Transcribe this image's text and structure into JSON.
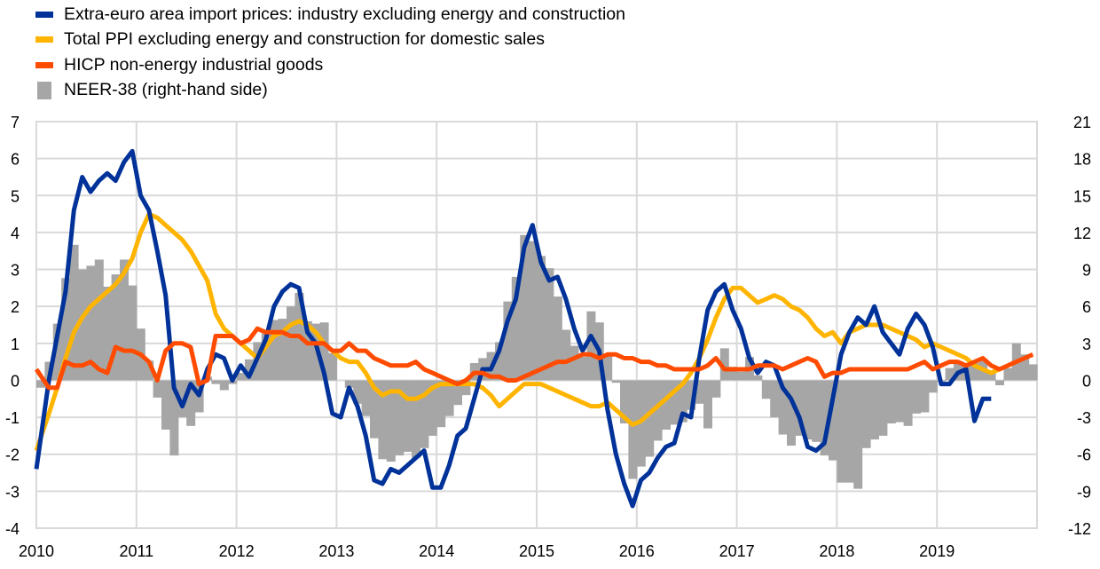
{
  "legend": [
    {
      "label": "Extra-euro area import prices: industry excluding energy and construction",
      "color": "#003299",
      "kind": "line"
    },
    {
      "label": "Total PPI excluding energy and construction for domestic sales",
      "color": "#FFB400",
      "kind": "line"
    },
    {
      "label": "HICP non-energy industrial goods",
      "color": "#FF4B00",
      "kind": "line"
    },
    {
      "label": "NEER-38 (right-hand side)",
      "color": "#A6A6A6",
      "kind": "bar"
    }
  ],
  "chart_data": {
    "type": "line",
    "title": "",
    "xlabel": "",
    "ylabel": "",
    "x_start": "2010-01",
    "frequency": "monthly",
    "x_ticks": [
      "2010",
      "2011",
      "2012",
      "2013",
      "2014",
      "2015",
      "2016",
      "2017",
      "2018",
      "2019"
    ],
    "y_left": {
      "min": -4,
      "max": 7,
      "step": 1,
      "ticks": [
        "-4",
        "-3",
        "-2",
        "-1",
        "0",
        "1",
        "2",
        "3",
        "4",
        "5",
        "6",
        "7"
      ]
    },
    "y_right": {
      "min": -12,
      "max": 21,
      "step": 3,
      "ticks": [
        "-12",
        "-9",
        "-6",
        "-3",
        "0",
        "3",
        "6",
        "9",
        "12",
        "15",
        "18",
        "21"
      ]
    },
    "grid": true,
    "legend_position": "top-left",
    "series": [
      {
        "name": "Extra-euro area import prices: industry excluding energy and construction",
        "axis": "left",
        "type": "line",
        "color": "#003299",
        "values": [
          -2.4,
          0.0,
          1.2,
          2.4,
          4.6,
          5.5,
          5.1,
          5.4,
          5.6,
          5.4,
          5.9,
          6.2,
          5.0,
          4.6,
          3.5,
          2.3,
          -0.2,
          -0.7,
          -0.1,
          -0.4,
          0.3,
          0.7,
          0.6,
          0.0,
          0.4,
          0.1,
          0.6,
          1.1,
          2.0,
          2.4,
          2.6,
          2.5,
          1.3,
          1.0,
          0.2,
          -0.9,
          -1.0,
          -0.2,
          -0.7,
          -1.5,
          -2.7,
          -2.8,
          -2.4,
          -2.5,
          -2.3,
          -2.1,
          -1.9,
          -2.9,
          -2.9,
          -2.3,
          -1.5,
          -1.3,
          -0.5,
          0.3,
          0.3,
          0.8,
          1.6,
          2.2,
          3.6,
          4.2,
          3.2,
          2.7,
          2.8,
          2.2,
          1.4,
          0.8,
          1.2,
          0.8,
          -0.8,
          -2.0,
          -2.8,
          -3.4,
          -2.7,
          -2.5,
          -2.1,
          -1.8,
          -1.7,
          -0.9,
          -1.0,
          0.6,
          1.9,
          2.4,
          2.6,
          1.9,
          1.4,
          0.6,
          0.2,
          0.5,
          0.4,
          -0.2,
          -0.5,
          -1.0,
          -1.8,
          -1.9,
          -1.7,
          -0.5,
          0.7,
          1.3,
          1.7,
          1.5,
          2.0,
          1.3,
          1.0,
          0.7,
          1.4,
          1.8,
          1.5,
          0.9,
          -0.1,
          -0.1,
          0.2,
          0.3,
          -1.1,
          -0.5,
          -0.5
        ]
      },
      {
        "name": "Total PPI excluding energy and construction for domestic sales",
        "axis": "left",
        "type": "line",
        "color": "#FFB400",
        "values": [
          -1.9,
          -0.9,
          -0.2,
          0.6,
          1.3,
          1.7,
          2.0,
          2.2,
          2.4,
          2.6,
          2.9,
          3.3,
          4.0,
          4.5,
          4.4,
          4.2,
          4.0,
          3.8,
          3.5,
          3.1,
          2.7,
          1.8,
          1.4,
          1.2,
          1.0,
          0.8,
          0.6,
          0.9,
          1.2,
          1.3,
          1.5,
          1.6,
          1.5,
          1.3,
          1.0,
          0.8,
          0.6,
          0.5,
          0.5,
          0.2,
          -0.2,
          -0.4,
          -0.3,
          -0.3,
          -0.5,
          -0.5,
          -0.4,
          -0.2,
          -0.1,
          -0.1,
          -0.1,
          -0.1,
          -0.1,
          -0.2,
          -0.4,
          -0.7,
          -0.5,
          -0.3,
          -0.1,
          -0.1,
          -0.1,
          -0.2,
          -0.3,
          -0.4,
          -0.5,
          -0.6,
          -0.7,
          -0.7,
          -0.6,
          -0.8,
          -1.0,
          -1.2,
          -1.1,
          -0.9,
          -0.7,
          -0.5,
          -0.3,
          -0.1,
          0.2,
          0.6,
          1.1,
          1.7,
          2.2,
          2.5,
          2.5,
          2.3,
          2.1,
          2.2,
          2.3,
          2.2,
          2.0,
          1.9,
          1.7,
          1.4,
          1.2,
          1.3,
          1.0,
          1.3,
          1.4,
          1.5,
          1.5,
          1.5,
          1.4,
          1.3,
          1.2,
          1.1,
          0.9,
          1.0,
          0.9,
          0.8,
          0.7,
          0.6,
          0.4,
          0.3,
          0.2,
          0.3
        ]
      },
      {
        "name": "HICP non-energy industrial goods",
        "axis": "left",
        "type": "line",
        "color": "#FF4B00",
        "values": [
          0.3,
          -0.2,
          -0.2,
          0.5,
          0.4,
          0.4,
          0.5,
          0.3,
          0.2,
          0.9,
          0.8,
          0.8,
          0.7,
          0.5,
          0.0,
          0.8,
          1.0,
          1.0,
          0.9,
          -0.1,
          0.0,
          1.2,
          1.2,
          1.2,
          1.0,
          1.1,
          1.4,
          1.3,
          1.3,
          1.3,
          1.2,
          1.2,
          1.0,
          1.0,
          1.0,
          0.8,
          0.8,
          1.0,
          0.8,
          0.8,
          0.6,
          0.5,
          0.4,
          0.4,
          0.4,
          0.5,
          0.3,
          0.2,
          0.1,
          0.0,
          -0.1,
          0.0,
          0.2,
          0.2,
          0.1,
          0.1,
          0.0,
          0.0,
          0.1,
          0.2,
          0.3,
          0.4,
          0.5,
          0.5,
          0.6,
          0.7,
          0.7,
          0.6,
          0.7,
          0.7,
          0.6,
          0.6,
          0.5,
          0.5,
          0.4,
          0.4,
          0.3,
          0.3,
          0.3,
          0.3,
          0.4,
          0.6,
          0.3,
          0.3,
          0.3,
          0.3,
          0.4,
          0.4,
          0.4,
          0.3,
          0.4,
          0.5,
          0.6,
          0.5,
          0.1,
          0.2,
          0.2,
          0.3,
          0.3,
          0.3,
          0.3,
          0.3,
          0.3,
          0.3,
          0.3,
          0.4,
          0.5,
          0.3,
          0.4,
          0.5,
          0.5,
          0.4,
          0.5,
          0.6,
          0.4,
          0.3,
          0.4,
          0.5,
          0.6,
          0.7
        ]
      },
      {
        "name": "NEER-38 (right-hand side)",
        "axis": "right",
        "type": "bar",
        "color": "#A6A6A6",
        "values": [
          -0.6,
          1.5,
          4.6,
          8.3,
          11.0,
          9.0,
          9.3,
          9.8,
          7.6,
          8.6,
          9.8,
          7.7,
          4.2,
          1.6,
          -1.4,
          -4.0,
          -6.1,
          -3.0,
          -3.7,
          -2.6,
          0.3,
          -0.3,
          -0.8,
          -0.3,
          0.6,
          1.7,
          3.1,
          3.8,
          4.9,
          5.0,
          6.0,
          7.1,
          4.8,
          4.6,
          4.7,
          2.2,
          0.0,
          -0.6,
          -1.9,
          -2.9,
          -4.7,
          -6.4,
          -6.6,
          -6.1,
          -5.8,
          -6.3,
          -5.5,
          -4.5,
          -3.8,
          -2.9,
          -2.0,
          -1.2,
          1.4,
          1.8,
          2.3,
          3.1,
          6.4,
          8.4,
          11.8,
          11.3,
          10.1,
          9.1,
          6.8,
          4.1,
          2.8,
          1.9,
          5.6,
          4.7,
          2.1,
          -0.2,
          -3.5,
          -8.0,
          -7.0,
          -6.2,
          -4.9,
          -4.0,
          -3.6,
          -3.4,
          -2.4,
          -1.9,
          -3.9,
          -1.4,
          2.6,
          1.1,
          0.7,
          1.9,
          0.4,
          -1.5,
          -3.0,
          -4.4,
          -5.3,
          -4.5,
          -4.8,
          -5.0,
          -6.1,
          -6.5,
          -8.3,
          -8.3,
          -8.8,
          -5.5,
          -4.8,
          -4.5,
          -3.5,
          -3.4,
          -3.7,
          -2.7,
          -2.6,
          -1.0,
          -0.1,
          1.0,
          1.5,
          1.2,
          1.4,
          1.6,
          0.6,
          -0.4,
          1.0,
          3.0,
          2.1,
          1.3
        ]
      }
    ]
  }
}
